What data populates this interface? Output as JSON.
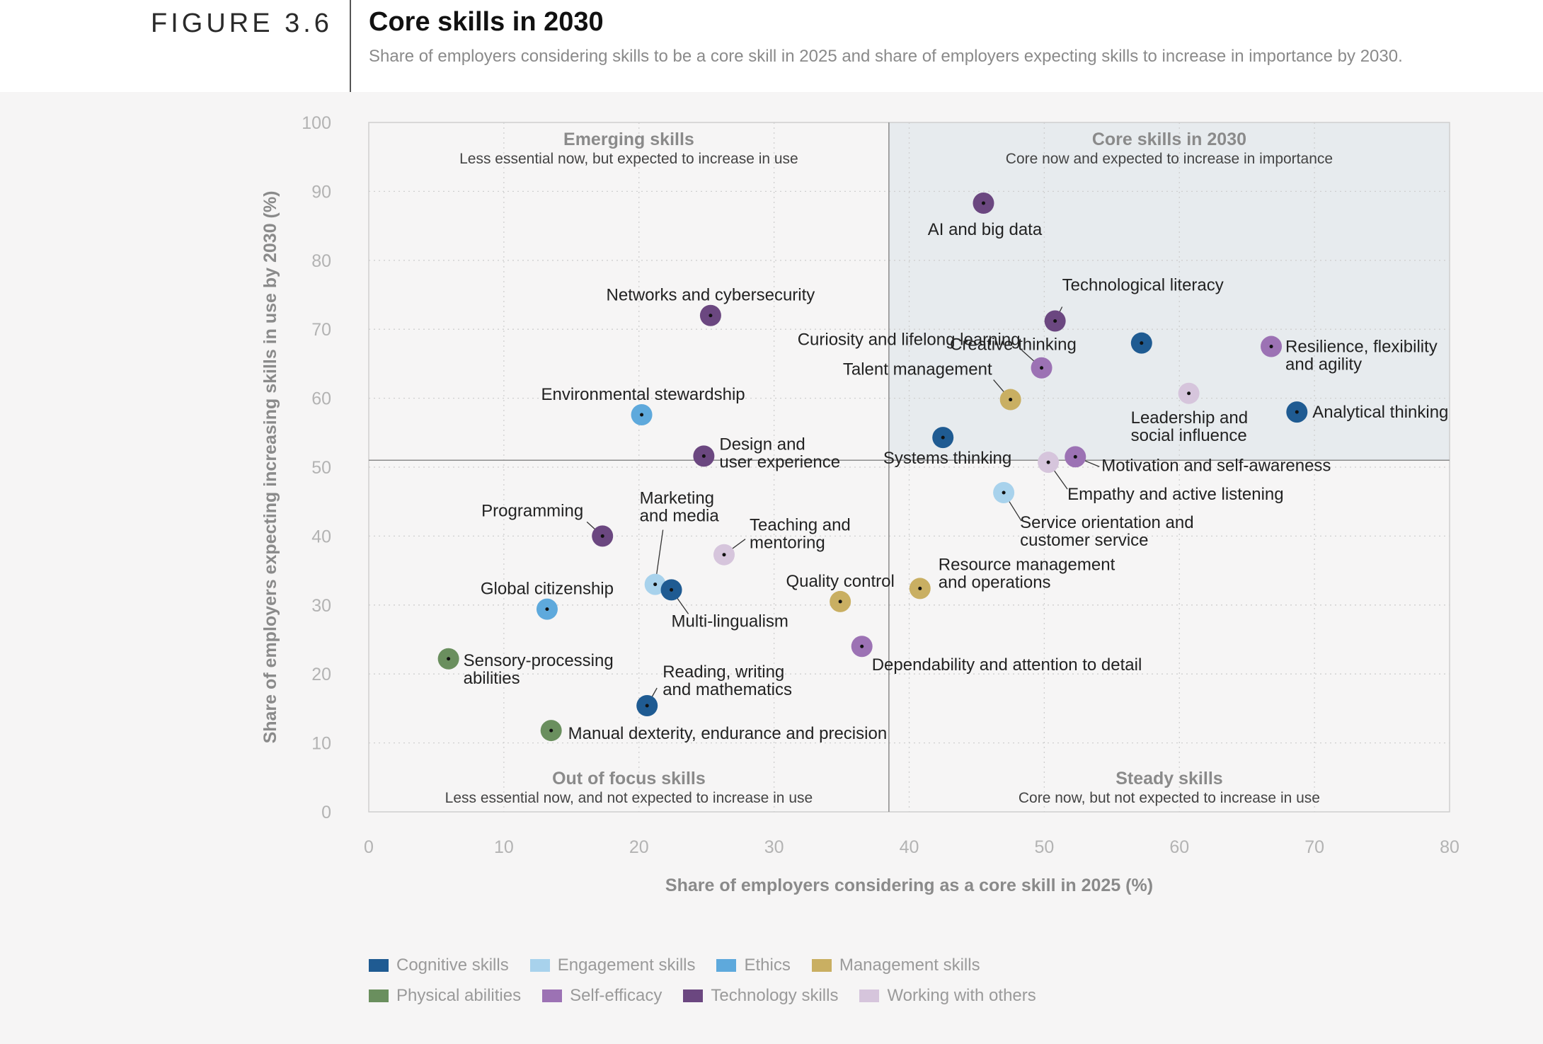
{
  "header": {
    "figure_label": "FIGURE 3.6",
    "title": "Core skills in 2030",
    "subtitle": "Share of employers considering skills to be a core skill in 2025 and share of employers expecting skills to increase in importance by 2030."
  },
  "chart_data": {
    "type": "scatter",
    "xlabel": "Share of employers considering as a core skill in 2025 (%)",
    "ylabel": "Share of employers expecting increasing skills in use by 2030 (%)",
    "xlim": [
      0,
      80
    ],
    "ylim": [
      0,
      100
    ],
    "xticks": [
      0,
      10,
      20,
      30,
      40,
      50,
      60,
      70,
      80
    ],
    "yticks": [
      0,
      10,
      20,
      30,
      40,
      50,
      60,
      70,
      80,
      90,
      100
    ],
    "grid": true,
    "divider_x": 38.5,
    "divider_y": 51,
    "quadrants": [
      {
        "id": "emerging",
        "title": "Emerging skills",
        "desc": "Less essential now, but expected to increase in use",
        "position": "top-left"
      },
      {
        "id": "core",
        "title": "Core skills in 2030",
        "desc": "Core now and expected to increase in importance",
        "position": "top-right"
      },
      {
        "id": "outfocus",
        "title": "Out of focus skills",
        "desc": "Less essential now, and not expected to increase in use",
        "position": "bottom-left"
      },
      {
        "id": "steady",
        "title": "Steady skills",
        "desc": "Core now, but not expected to increase in use",
        "position": "bottom-right"
      }
    ],
    "categories": [
      {
        "name": "Cognitive skills",
        "color": "#1f5b92"
      },
      {
        "name": "Engagement skills",
        "color": "#a8d2ec"
      },
      {
        "name": "Ethics",
        "color": "#5ea9dc"
      },
      {
        "name": "Management skills",
        "color": "#c9af62"
      },
      {
        "name": "Physical abilities",
        "color": "#6a8f5e"
      },
      {
        "name": "Self-efficacy",
        "color": "#9c72b4"
      },
      {
        "name": "Technology skills",
        "color": "#6b4780"
      },
      {
        "name": "Working with others",
        "color": "#d6c5dc"
      }
    ],
    "points": [
      {
        "label": "AI and big data",
        "category": "Technology skills",
        "x": 45.5,
        "y": 88.3
      },
      {
        "label": "Technological literacy",
        "category": "Technology skills",
        "x": 50.8,
        "y": 71.2
      },
      {
        "label": "Creative thinking",
        "category": "Cognitive skills",
        "x": 57.2,
        "y": 68.0
      },
      {
        "label": "Resilience, flexibility and agility",
        "category": "Self-efficacy",
        "x": 66.8,
        "y": 67.5
      },
      {
        "label": "Curiosity and lifelong learning",
        "category": "Self-efficacy",
        "x": 49.8,
        "y": 64.4
      },
      {
        "label": "Talent management",
        "category": "Management skills",
        "x": 47.5,
        "y": 59.8
      },
      {
        "label": "Leadership and social influence",
        "category": "Working with others",
        "x": 60.7,
        "y": 60.7
      },
      {
        "label": "Analytical thinking",
        "category": "Cognitive skills",
        "x": 68.7,
        "y": 58.0
      },
      {
        "label": "Systems thinking",
        "category": "Cognitive skills",
        "x": 42.5,
        "y": 54.3
      },
      {
        "label": "Motivation and self-awareness",
        "category": "Self-efficacy",
        "x": 52.3,
        "y": 51.5
      },
      {
        "label": "Empathy and active listening",
        "category": "Working with others",
        "x": 50.3,
        "y": 50.7
      },
      {
        "label": "Service orientation and customer service",
        "category": "Engagement skills",
        "x": 47.0,
        "y": 46.3
      },
      {
        "label": "Networks and cybersecurity",
        "category": "Technology skills",
        "x": 25.3,
        "y": 72.0
      },
      {
        "label": "Environmental stewardship",
        "category": "Ethics",
        "x": 20.2,
        "y": 57.6
      },
      {
        "label": "Design and user experience",
        "category": "Technology skills",
        "x": 24.8,
        "y": 51.6
      },
      {
        "label": "Programming",
        "category": "Technology skills",
        "x": 17.3,
        "y": 40.0
      },
      {
        "label": "Teaching and mentoring",
        "category": "Working with others",
        "x": 26.3,
        "y": 37.3
      },
      {
        "label": "Marketing and media",
        "category": "Engagement skills",
        "x": 21.2,
        "y": 33.0
      },
      {
        "label": "Multi-lingualism",
        "category": "Cognitive skills",
        "x": 22.4,
        "y": 32.2
      },
      {
        "label": "Global citizenship",
        "category": "Ethics",
        "x": 13.2,
        "y": 29.4
      },
      {
        "label": "Quality control",
        "category": "Management skills",
        "x": 34.9,
        "y": 30.5
      },
      {
        "label": "Resource management and operations",
        "category": "Management skills",
        "x": 40.8,
        "y": 32.4
      },
      {
        "label": "Dependability and attention to detail",
        "category": "Self-efficacy",
        "x": 36.5,
        "y": 24.0
      },
      {
        "label": "Sensory-processing abilities",
        "category": "Physical abilities",
        "x": 5.9,
        "y": 22.2
      },
      {
        "label": "Reading, writing and mathematics",
        "category": "Cognitive skills",
        "x": 20.6,
        "y": 15.4
      },
      {
        "label": "Manual dexterity, endurance and precision",
        "category": "Physical abilities",
        "x": 13.5,
        "y": 11.8
      }
    ]
  }
}
